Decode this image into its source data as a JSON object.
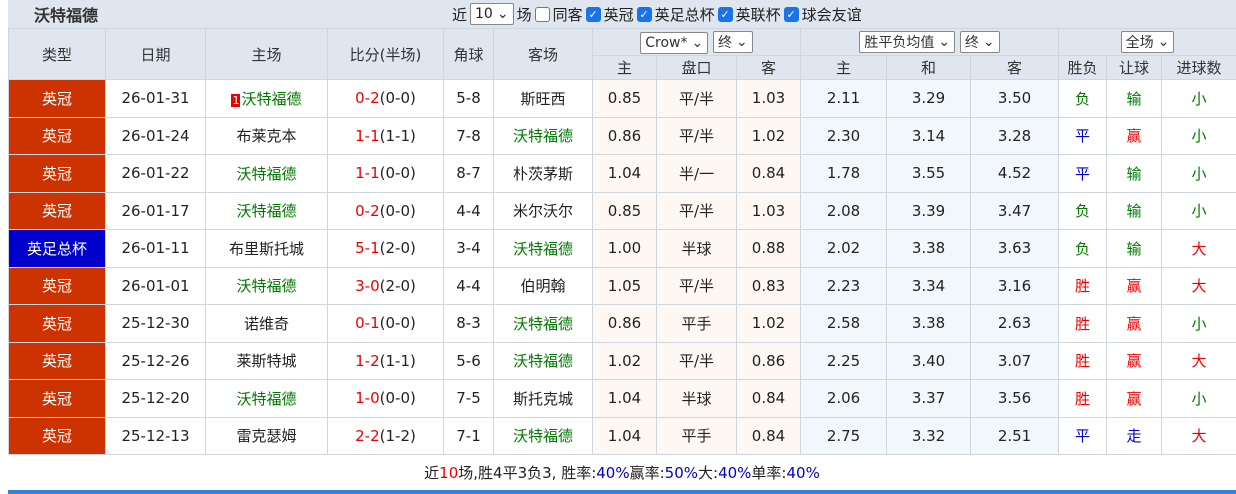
{
  "header": {
    "title": "沃特福德",
    "recent_label": "近",
    "recent_value": "10",
    "games_label": "场",
    "same_label": "同客",
    "competitions": [
      "英冠",
      "英足总杯",
      "英联杯",
      "球会友谊"
    ]
  },
  "columns": {
    "type": "类型",
    "date": "日期",
    "home": "主场",
    "score": "比分(半场)",
    "corner": "角球",
    "away": "客场",
    "company_select": "Crow*",
    "final1": "终",
    "odds_select": "胜平负均值",
    "final2": "终",
    "period_select": "全场",
    "sub": [
      "主",
      "盘口",
      "客",
      "主",
      "和",
      "客",
      "胜负",
      "让球",
      "进球数"
    ]
  },
  "rows": [
    {
      "type": "英冠",
      "date": "26-01-31",
      "rank": "1",
      "home": "沃特福德",
      "score": "0-2",
      "half": "(0-0)",
      "corner": "5-8",
      "away": "斯旺西",
      "h": "0.85",
      "line": "平/半",
      "a": "1.03",
      "w": "2.11",
      "d": "3.29",
      "l": "3.50",
      "res": "负",
      "hc": "输",
      "ou": "小"
    },
    {
      "type": "英冠",
      "date": "26-01-24",
      "home": "布莱克本",
      "score": "1-1",
      "half": "(1-1)",
      "corner": "7-8",
      "away": "沃特福德",
      "h": "0.86",
      "line": "平/半",
      "a": "1.02",
      "w": "2.30",
      "d": "3.14",
      "l": "3.28",
      "res": "平",
      "hc": "赢",
      "ou": "小"
    },
    {
      "type": "英冠",
      "date": "26-01-22",
      "home": "沃特福德",
      "score": "1-1",
      "half": "(0-0)",
      "corner": "8-7",
      "away": "朴茨茅斯",
      "h": "1.04",
      "line": "半/一",
      "a": "0.84",
      "w": "1.78",
      "d": "3.55",
      "l": "4.52",
      "res": "平",
      "hc": "输",
      "ou": "小"
    },
    {
      "type": "英冠",
      "date": "26-01-17",
      "home": "沃特福德",
      "score": "0-2",
      "half": "(0-0)",
      "corner": "4-4",
      "away": "米尔沃尔",
      "h": "0.85",
      "line": "平/半",
      "a": "1.03",
      "w": "2.08",
      "d": "3.39",
      "l": "3.47",
      "res": "负",
      "hc": "输",
      "ou": "小"
    },
    {
      "type": "英足总杯",
      "date": "26-01-11",
      "home": "布里斯托城",
      "score": "5-1",
      "half": "(2-0)",
      "corner": "3-4",
      "away": "沃特福德",
      "h": "1.00",
      "line": "半球",
      "a": "0.88",
      "w": "2.02",
      "d": "3.38",
      "l": "3.63",
      "res": "负",
      "hc": "输",
      "ou": "大"
    },
    {
      "type": "英冠",
      "date": "26-01-01",
      "home": "沃特福德",
      "score": "3-0",
      "half": "(2-0)",
      "corner": "4-4",
      "away": "伯明翰",
      "h": "1.05",
      "line": "平/半",
      "a": "0.83",
      "w": "2.23",
      "d": "3.34",
      "l": "3.16",
      "res": "胜",
      "hc": "赢",
      "ou": "大"
    },
    {
      "type": "英冠",
      "date": "25-12-30",
      "home": "诺维奇",
      "score": "0-1",
      "half": "(0-0)",
      "corner": "8-3",
      "away": "沃特福德",
      "h": "0.86",
      "line": "平手",
      "a": "1.02",
      "w": "2.58",
      "d": "3.38",
      "l": "2.63",
      "res": "胜",
      "hc": "赢",
      "ou": "小"
    },
    {
      "type": "英冠",
      "date": "25-12-26",
      "home": "莱斯特城",
      "score": "1-2",
      "half": "(1-1)",
      "corner": "5-6",
      "away": "沃特福德",
      "h": "1.02",
      "line": "平/半",
      "a": "0.86",
      "w": "2.25",
      "d": "3.40",
      "l": "3.07",
      "res": "胜",
      "hc": "赢",
      "ou": "大"
    },
    {
      "type": "英冠",
      "date": "25-12-20",
      "home": "沃特福德",
      "score": "1-0",
      "half": "(0-0)",
      "corner": "7-5",
      "away": "斯托克城",
      "h": "1.04",
      "line": "半球",
      "a": "0.84",
      "w": "2.06",
      "d": "3.37",
      "l": "3.56",
      "res": "胜",
      "hc": "赢",
      "ou": "小"
    },
    {
      "type": "英冠",
      "date": "25-12-13",
      "home": "雷克瑟姆",
      "score": "2-2",
      "half": "(1-2)",
      "corner": "7-1",
      "away": "沃特福德",
      "h": "1.04",
      "line": "平手",
      "a": "0.84",
      "w": "2.75",
      "d": "3.32",
      "l": "2.51",
      "res": "平",
      "hc": "走",
      "ou": "大"
    }
  ],
  "footer": {
    "pre": "近",
    "n": "10",
    "mid": "场,胜4平3负3, 胜率:",
    "win": "40%",
    "l2": " 赢率:",
    "hcrate": "50%",
    "l3": " 大:",
    "big": "40%",
    "l4": " 单率:",
    "odd": "40%"
  },
  "colors": {
    "league": "#cc3300",
    "cup": "#0000cc",
    "team": "#007a00",
    "win": "#e00",
    "draw": "#0000cc",
    "lose": "#007a00"
  }
}
